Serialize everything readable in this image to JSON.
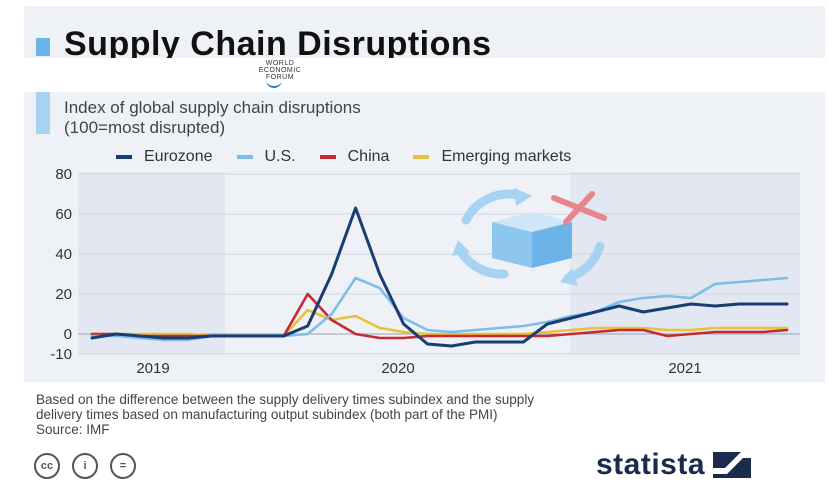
{
  "header": {
    "title": "Supply Chain Disruptions",
    "logo_lines": [
      "WORLD",
      "ECONOMIC",
      "FORUM"
    ]
  },
  "subtitle": [
    "Index of global supply chain disruptions",
    "(100=most disrupted)"
  ],
  "colors": {
    "eurozone": "#173d72",
    "us": "#7fbde9",
    "china": "#c62a30",
    "emerging": "#e8c23a",
    "band": "#eef1f6",
    "accent": "#6cb4e8"
  },
  "chart_data": {
    "type": "line",
    "title": "Index of global supply chain disruptions (100=most disrupted)",
    "xlabel": "",
    "ylabel": "",
    "ylim": [
      -10,
      80
    ],
    "yticks": [
      80,
      60,
      40,
      20,
      0,
      -10
    ],
    "year_labels": [
      "2019",
      "2020",
      "2021"
    ],
    "x_months": [
      "2019-01",
      "2019-02",
      "2019-03",
      "2019-04",
      "2019-05",
      "2019-06",
      "2019-07",
      "2019-08",
      "2019-09",
      "2019-10",
      "2019-11",
      "2019-12",
      "2020-01",
      "2020-02",
      "2020-03",
      "2020-04",
      "2020-05",
      "2020-06",
      "2020-07",
      "2020-08",
      "2020-09",
      "2020-10",
      "2020-11",
      "2020-12",
      "2021-01",
      "2021-02",
      "2021-03",
      "2021-04",
      "2021-05",
      "2021-06",
      "2021-07",
      "2021-08",
      "2021-09",
      "2021-10",
      "2021-11",
      "2021-12"
    ],
    "series": [
      {
        "name": "Eurozone",
        "values": [
          -2,
          0,
          -1,
          -2,
          -2,
          -1,
          -1,
          -1,
          -1,
          4,
          30,
          63,
          30,
          5,
          -5,
          -6,
          -4,
          -4,
          -4,
          5,
          8,
          11,
          14,
          11,
          13,
          15,
          14,
          15,
          15,
          15
        ]
      },
      {
        "name": "U.S.",
        "values": [
          -1,
          -1,
          -2,
          -3,
          -3,
          -1,
          -1,
          -1,
          -1,
          0,
          10,
          28,
          23,
          8,
          2,
          1,
          2,
          3,
          4,
          6,
          9,
          11,
          16,
          18,
          19,
          18,
          25,
          26,
          27,
          28
        ]
      },
      {
        "name": "China",
        "values": [
          0,
          0,
          -1,
          -1,
          -1,
          -1,
          -1,
          -1,
          -1,
          20,
          7,
          0,
          -2,
          -2,
          -1,
          -1,
          -1,
          -1,
          -1,
          -1,
          0,
          1,
          2,
          2,
          -1,
          0,
          1,
          1,
          1,
          2
        ]
      },
      {
        "name": "Emerging markets",
        "values": [
          0,
          0,
          0,
          0,
          0,
          -1,
          -1,
          -1,
          -1,
          12,
          7,
          9,
          3,
          1,
          0,
          0,
          0,
          0,
          0,
          1,
          2,
          3,
          3,
          3,
          2,
          2,
          3,
          3,
          3,
          3
        ]
      }
    ]
  },
  "notes": [
    "Based on the difference between the supply delivery times subindex and the supply",
    "delivery times based on manufacturing output subindex (both part of the PMI)",
    "Source: IMF"
  ],
  "footer": {
    "cc_icons": [
      "cc-icon",
      "by-icon",
      "nd-icon"
    ],
    "cc_labels": [
      "cc",
      "i",
      "="
    ],
    "brand": "statista"
  }
}
